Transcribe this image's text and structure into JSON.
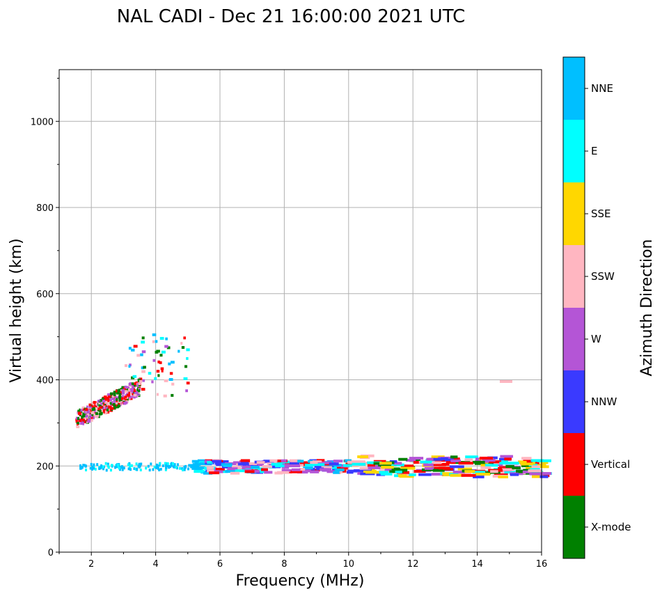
{
  "chart_data": {
    "type": "scatter",
    "title": "NAL CADI - Dec 21 16:00:00 2021 UTC",
    "xlabel": "Frequency (MHz)",
    "ylabel": "Virtual height (km)",
    "xlim": [
      1,
      16
    ],
    "ylim": [
      0,
      1120
    ],
    "xticks": [
      2,
      4,
      6,
      8,
      10,
      12,
      14,
      16
    ],
    "yticks": [
      0,
      200,
      400,
      600,
      800,
      1000
    ],
    "grid": true,
    "colorbar": {
      "label": "Azimuth Direction",
      "categories": [
        {
          "name": "X-mode",
          "color": "#008000"
        },
        {
          "name": "Vertical",
          "color": "#ff0000"
        },
        {
          "name": "NNW",
          "color": "#3a3aff"
        },
        {
          "name": "W",
          "color": "#b455d6"
        },
        {
          "name": "SSW",
          "color": "#ffb6c1"
        },
        {
          "name": "SSE",
          "color": "#ffd700"
        },
        {
          "name": "E",
          "color": "#00ffff"
        },
        {
          "name": "NNE",
          "color": "#00bfff"
        }
      ]
    },
    "clusters": [
      {
        "description": "F-region spread echoes",
        "freq_range": [
          1.5,
          5.0
        ],
        "height_range": [
          280,
          505
        ],
        "dominant": [
          "Vertical",
          "X-mode",
          "SSW",
          "W"
        ]
      },
      {
        "description": "E/F1 trace near 200 km",
        "freq_range": [
          1.6,
          16.0
        ],
        "height_range": [
          165,
          238
        ],
        "dominant": [
          "NNE",
          "E",
          "W",
          "Vertical",
          "NNW",
          "X-mode"
        ]
      },
      {
        "description": "isolated echo",
        "freq_range": [
          14.7,
          15.1
        ],
        "height_range": [
          394,
          398
        ],
        "dominant": [
          "SSW"
        ]
      }
    ]
  }
}
